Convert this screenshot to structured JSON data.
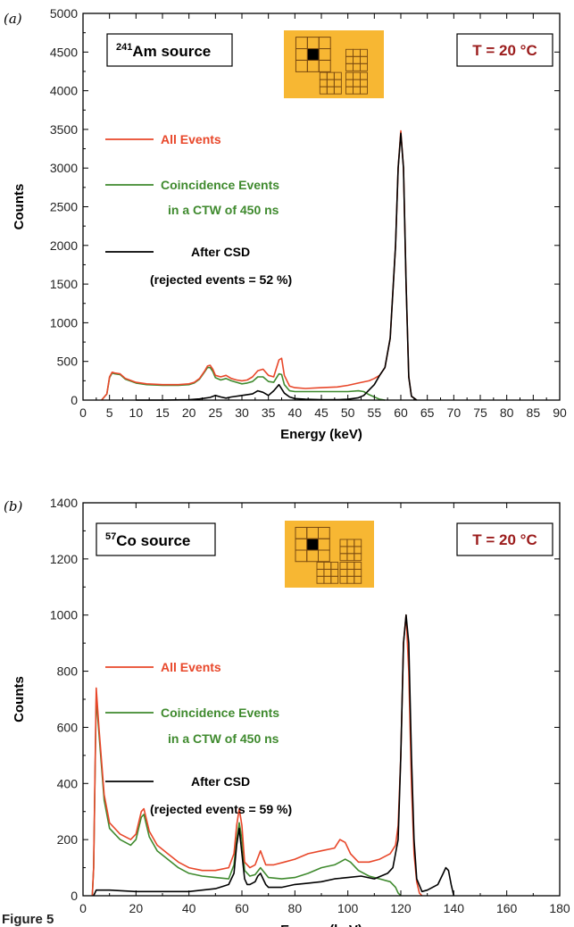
{
  "figure_label": "Figure 5",
  "colors": {
    "all": "#e8472a",
    "coincidence": "#3f8a2e",
    "after": "#000000",
    "temp": "#9b1c1c",
    "pixel_bg": "#f7b733"
  },
  "chart_data": [
    {
      "type": "line",
      "panel": "(a)",
      "source_sup": "241",
      "source_text": "Am source",
      "temperature": "T = 20 °C",
      "xlabel": "Energy (keV)",
      "ylabel": "Counts",
      "xlim": [
        0,
        90
      ],
      "ylim": [
        0,
        5000
      ],
      "xticks": [
        0,
        5,
        10,
        15,
        20,
        25,
        30,
        35,
        40,
        45,
        50,
        55,
        60,
        65,
        70,
        75,
        80,
        85,
        90
      ],
      "yticks": [
        0,
        500,
        1000,
        1500,
        2000,
        2500,
        3000,
        3500,
        4000,
        4500,
        5000
      ],
      "legend": {
        "all": "All Events",
        "coin1": "Coincidence Events",
        "coin2": "in a  CTW of 450 ns",
        "after1": "After CSD",
        "after2": "(rejected events = 52 %)"
      },
      "series": [
        {
          "key": "all",
          "x": [
            3.5,
            4.5,
            5,
            5.5,
            6,
            7,
            8,
            10,
            12,
            15,
            18,
            20,
            21,
            22,
            23,
            23.5,
            24,
            24.5,
            25,
            26,
            27,
            28,
            29,
            30,
            31,
            32,
            33,
            34,
            35,
            36,
            37,
            37.5,
            38,
            39,
            40,
            42,
            45,
            48,
            50,
            52,
            54,
            55,
            56,
            57,
            58,
            59,
            59.5,
            60,
            60.5,
            61,
            61.5,
            62,
            63
          ],
          "y": [
            0,
            80,
            300,
            360,
            350,
            340,
            280,
            230,
            210,
            200,
            200,
            210,
            230,
            280,
            380,
            440,
            450,
            400,
            320,
            300,
            320,
            280,
            260,
            250,
            260,
            300,
            380,
            400,
            320,
            300,
            520,
            540,
            320,
            180,
            160,
            150,
            160,
            170,
            190,
            220,
            250,
            280,
            320,
            420,
            800,
            2000,
            3000,
            3480,
            3000,
            1500,
            300,
            50,
            0
          ]
        },
        {
          "key": "coincidence",
          "x": [
            3.5,
            4.5,
            5,
            5.5,
            6,
            7,
            8,
            10,
            12,
            15,
            18,
            20,
            21,
            22,
            23,
            23.5,
            24,
            24.5,
            25,
            26,
            27,
            28,
            29,
            30,
            31,
            32,
            33,
            34,
            35,
            36,
            37,
            37.5,
            38,
            39,
            40,
            42,
            45,
            48,
            50,
            52,
            53,
            54,
            55,
            56,
            57
          ],
          "y": [
            0,
            80,
            290,
            350,
            340,
            330,
            270,
            220,
            200,
            190,
            190,
            200,
            220,
            270,
            370,
            420,
            420,
            370,
            290,
            260,
            280,
            250,
            230,
            210,
            220,
            240,
            300,
            300,
            240,
            230,
            340,
            330,
            200,
            120,
            110,
            110,
            110,
            110,
            110,
            120,
            110,
            70,
            40,
            10,
            0
          ]
        },
        {
          "key": "after",
          "x": [
            10,
            15,
            20,
            22,
            24,
            25,
            26,
            27,
            28,
            30,
            32,
            33,
            34,
            35,
            36,
            36.5,
            37,
            38,
            39,
            40,
            42,
            45,
            48,
            50,
            52,
            53,
            54,
            55,
            56,
            57,
            58,
            59,
            59.5,
            60,
            60.5,
            61,
            61.5,
            62,
            63
          ],
          "y": [
            0,
            0,
            5,
            15,
            35,
            60,
            40,
            25,
            40,
            60,
            80,
            120,
            100,
            60,
            120,
            160,
            200,
            90,
            40,
            20,
            10,
            5,
            5,
            10,
            30,
            60,
            130,
            200,
            320,
            420,
            800,
            2000,
            3000,
            3450,
            3000,
            1500,
            300,
            50,
            0
          ]
        }
      ]
    },
    {
      "type": "line",
      "panel": "(b)",
      "source_sup": "57",
      "source_text": "Co source",
      "temperature": "T = 20 °C",
      "xlabel": "Energy (keV)",
      "ylabel": "Counts",
      "xlim": [
        0,
        180
      ],
      "ylim": [
        0,
        1400
      ],
      "xticks": [
        0,
        20,
        40,
        60,
        80,
        100,
        120,
        140,
        160,
        180
      ],
      "yticks": [
        0,
        200,
        400,
        600,
        800,
        1000,
        1200,
        1400
      ],
      "legend": {
        "all": "All Events",
        "coin1": "Coincidence Events",
        "coin2": "in a  CTW of 450 ns",
        "after1": "After CSD",
        "after2": "(rejected events = 59 %)"
      },
      "series": [
        {
          "key": "all",
          "x": [
            3.5,
            4,
            5,
            6,
            8,
            10,
            14,
            18,
            20,
            22,
            23,
            25,
            28,
            32,
            36,
            40,
            45,
            50,
            55,
            57,
            58,
            59,
            60,
            61,
            63,
            65,
            67,
            69,
            72,
            76,
            80,
            85,
            90,
            95,
            97,
            99,
            101,
            104,
            108,
            112,
            116,
            118,
            119,
            120,
            121,
            122,
            123,
            124,
            125,
            126,
            127,
            128
          ],
          "y": [
            0,
            100,
            740,
            600,
            360,
            260,
            220,
            200,
            220,
            300,
            310,
            230,
            180,
            150,
            120,
            100,
            90,
            90,
            100,
            150,
            250,
            310,
            250,
            120,
            100,
            110,
            160,
            110,
            110,
            120,
            130,
            150,
            160,
            170,
            200,
            190,
            150,
            120,
            120,
            130,
            150,
            180,
            250,
            500,
            900,
            1000,
            800,
            400,
            150,
            50,
            10,
            0
          ]
        },
        {
          "key": "coincidence",
          "x": [
            3.5,
            4,
            5,
            6,
            8,
            10,
            14,
            18,
            20,
            22,
            23,
            25,
            28,
            32,
            36,
            40,
            45,
            50,
            55,
            57,
            58,
            59,
            60,
            61,
            63,
            65,
            67,
            70,
            75,
            80,
            85,
            90,
            95,
            97,
            99,
            101,
            104,
            108,
            112,
            116,
            118,
            119,
            120
          ],
          "y": [
            0,
            100,
            710,
            580,
            340,
            240,
            200,
            180,
            200,
            280,
            290,
            210,
            160,
            130,
            100,
            80,
            70,
            65,
            60,
            110,
            200,
            260,
            200,
            90,
            70,
            75,
            100,
            65,
            60,
            65,
            80,
            100,
            110,
            120,
            130,
            120,
            90,
            70,
            60,
            50,
            30,
            10,
            0
          ]
        },
        {
          "key": "after",
          "x": [
            4,
            5,
            10,
            20,
            30,
            40,
            45,
            50,
            55,
            57,
            58,
            59,
            60,
            61,
            62,
            63,
            65,
            66,
            67,
            68,
            69,
            70,
            75,
            80,
            85,
            90,
            95,
            100,
            105,
            110,
            115,
            117,
            119,
            120,
            121,
            122,
            123,
            124,
            125,
            126,
            128,
            130,
            134,
            136,
            137,
            138,
            139,
            140
          ],
          "y": [
            0,
            20,
            20,
            15,
            15,
            15,
            20,
            25,
            40,
            80,
            180,
            240,
            150,
            60,
            40,
            40,
            50,
            70,
            80,
            60,
            40,
            30,
            30,
            40,
            45,
            50,
            60,
            65,
            70,
            60,
            80,
            100,
            200,
            500,
            900,
            1000,
            900,
            500,
            200,
            60,
            15,
            20,
            40,
            80,
            100,
            90,
            40,
            0
          ]
        }
      ]
    }
  ]
}
